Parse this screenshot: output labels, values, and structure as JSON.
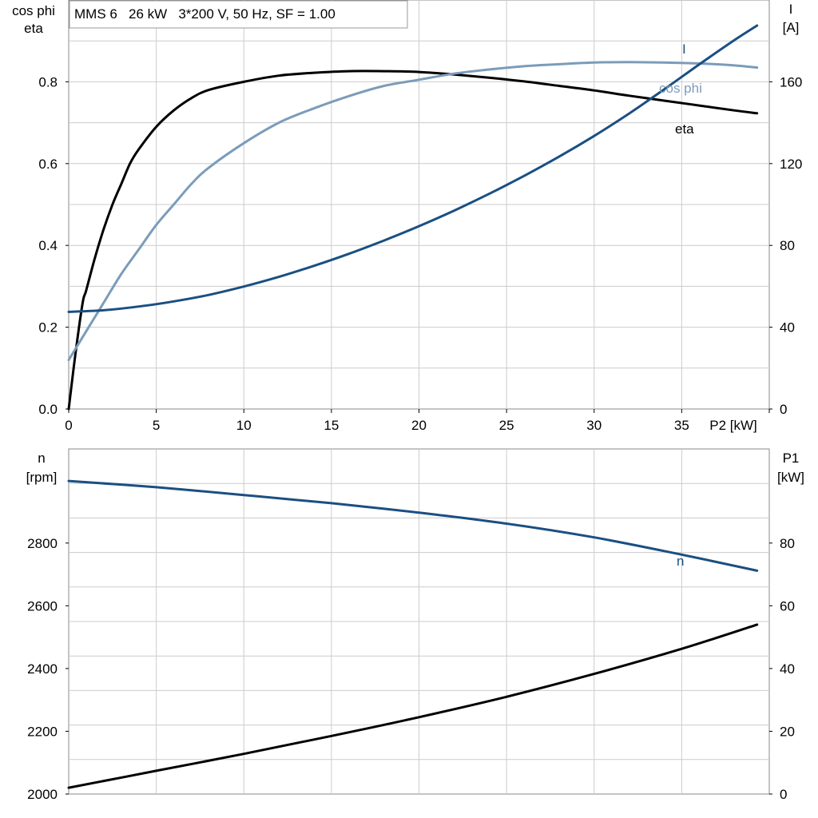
{
  "chart_data": [
    {
      "type": "line",
      "title": "MMS 6   26 kW   3*200 V, 50 Hz, SF = 1.00",
      "xlabel": "P2 [kW]",
      "x_ticks": [
        "0",
        "5",
        "10",
        "15",
        "20",
        "25",
        "30",
        "35"
      ],
      "xlim": [
        0,
        40
      ],
      "left_axis": {
        "label_lines": [
          "cos phi",
          "eta"
        ],
        "ticks": [
          "0.0",
          "0.2",
          "0.4",
          "0.6",
          "0.8"
        ],
        "ylim": [
          0,
          1.0
        ]
      },
      "right_axis": {
        "label_lines": [
          "I",
          "[A]"
        ],
        "ticks": [
          "0",
          "40",
          "80",
          "120",
          "160"
        ],
        "ylim": [
          0,
          200
        ]
      },
      "grid": true,
      "series": [
        {
          "name": "eta",
          "axis": "left",
          "color": "#000000",
          "x": [
            0,
            0.4,
            0.8,
            1.0,
            1.5,
            2.0,
            2.5,
            3,
            3.5,
            4,
            5,
            6,
            7,
            8,
            10,
            12,
            14,
            16,
            18,
            20,
            22,
            24,
            26,
            28,
            30,
            32,
            34,
            36,
            38,
            39.3
          ],
          "y": [
            0.0,
            0.14,
            0.26,
            0.29,
            0.37,
            0.44,
            0.5,
            0.55,
            0.6,
            0.635,
            0.69,
            0.73,
            0.76,
            0.78,
            0.8,
            0.815,
            0.822,
            0.826,
            0.826,
            0.824,
            0.818,
            0.81,
            0.801,
            0.79,
            0.779,
            0.766,
            0.754,
            0.742,
            0.73,
            0.723
          ]
        },
        {
          "name": "cos phi",
          "axis": "left",
          "color": "#7b9cba",
          "x": [
            0,
            1,
            2,
            3,
            4,
            5,
            6,
            7,
            8,
            10,
            12,
            14,
            16,
            18,
            20,
            22,
            24,
            26,
            28,
            30,
            32,
            34,
            36,
            38,
            39.3
          ],
          "y": [
            0.12,
            0.19,
            0.26,
            0.33,
            0.39,
            0.45,
            0.5,
            0.55,
            0.59,
            0.65,
            0.7,
            0.735,
            0.765,
            0.79,
            0.805,
            0.82,
            0.83,
            0.838,
            0.843,
            0.847,
            0.848,
            0.847,
            0.845,
            0.84,
            0.835
          ]
        },
        {
          "name": "I",
          "axis": "right",
          "color": "#1a4f82",
          "x": [
            0,
            2,
            4,
            6,
            8,
            10,
            12,
            14,
            16,
            18,
            20,
            22,
            24,
            26,
            28,
            30,
            32,
            34,
            36,
            38,
            39.3
          ],
          "y": [
            47.5,
            48.3,
            50.1,
            52.6,
            55.8,
            59.9,
            64.6,
            70.0,
            75.9,
            82.4,
            89.4,
            97.0,
            105.2,
            114.0,
            123.4,
            133.5,
            144.5,
            156.3,
            168.5,
            180.3,
            187.5
          ]
        }
      ],
      "labels": [
        "eta",
        "cos phi",
        "I"
      ]
    },
    {
      "type": "line",
      "xlim": [
        0,
        40
      ],
      "left_axis": {
        "label_lines": [
          "n",
          "[rpm]"
        ],
        "ticks": [
          "2000",
          "2200",
          "2400",
          "2600",
          "2800"
        ],
        "ylim": [
          2000,
          3100
        ]
      },
      "right_axis": {
        "label_lines": [
          "P1",
          "[kW]"
        ],
        "ticks": [
          "0",
          "20",
          "40",
          "60",
          "80"
        ],
        "ylim": [
          0,
          110
        ]
      },
      "grid": true,
      "series": [
        {
          "name": "n",
          "axis": "left",
          "color": "#1a4f82",
          "x": [
            0,
            5,
            10,
            15,
            20,
            25,
            30,
            35,
            39.3
          ],
          "y": [
            2998,
            2978,
            2953,
            2927,
            2897,
            2862,
            2818,
            2763,
            2712
          ]
        },
        {
          "axis": "right",
          "color": "#000000",
          "x": [
            0,
            5,
            10,
            15,
            20,
            25,
            30,
            35,
            39.3
          ],
          "y": [
            2.0,
            7.4,
            12.8,
            18.5,
            24.5,
            31.0,
            38.3,
            46.3,
            54.0
          ]
        }
      ],
      "labels": [
        "n"
      ]
    }
  ]
}
